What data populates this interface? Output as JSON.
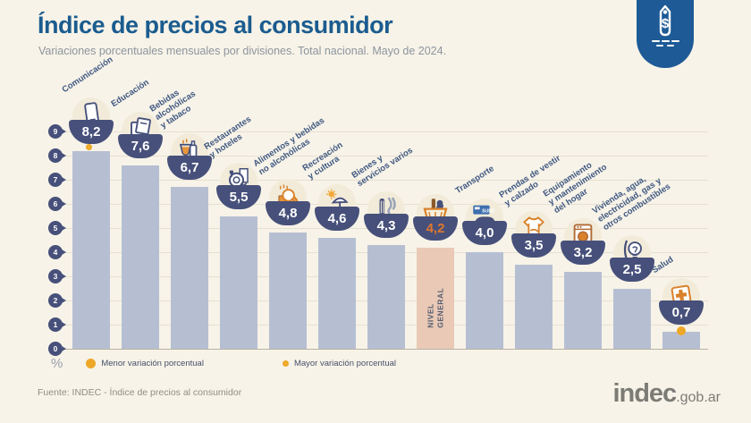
{
  "header": {
    "title": "Índice de precios al consumidor",
    "subtitle": "Variaciones porcentuales mensuales por divisiones. Total nacional. Mayo de 2024."
  },
  "badge": {
    "icon": "price-tag-icon"
  },
  "chart_data": {
    "type": "bar",
    "title": "Índice de precios al consumidor",
    "subtitle": "Variaciones porcentuales mensuales por divisiones. Total nacional. Mayo de 2024.",
    "unit": "%",
    "ylim": [
      0,
      9
    ],
    "yticks": [
      0,
      1,
      2,
      3,
      4,
      5,
      6,
      7,
      8,
      9
    ],
    "grid": true,
    "categories": [
      "Comunicación",
      "Educación",
      "Bebidas alcohólicas y tabaco",
      "Restaurantes y hoteles",
      "Alimentos y bebidas no alcohólicas",
      "Recreación y cultura",
      "Bienes y servicios varios",
      "Nivel general",
      "Transporte",
      "Prendas de vestir y calzado",
      "Equipamiento y mantenimiento del hogar",
      "Vivienda, agua, electricidad, gas y otros combustibles",
      "Salud"
    ],
    "label_lines": [
      "Comunicación",
      "Educación",
      "Bebidas\nalcohólicas\ny tabaco",
      "Restaurantes\ny hoteles",
      "Alimentos y bebidas\nno alcohólicas",
      "Recreación\ny cultura",
      "Bienes y\nservicios varios",
      "",
      "Transporte",
      "Prendas de vestir\ny calzado",
      "Equipamiento\ny mantenimiento\ndel hogar",
      "Vivienda, agua,\nelectricidad, gas y\notros combustibles",
      "Salud"
    ],
    "values": [
      8.2,
      7.6,
      6.7,
      5.5,
      4.8,
      4.6,
      4.3,
      4.2,
      4.0,
      3.5,
      3.2,
      2.5,
      0.7
    ],
    "display_values": [
      "8,2",
      "7,6",
      "6,7",
      "5,5",
      "4,8",
      "4,6",
      "4,3",
      "4,2",
      "4,0",
      "3,5",
      "3,2",
      "2,5",
      "0,7"
    ],
    "icons": [
      "smartphone-icon",
      "books-icon",
      "drinks-icon",
      "restaurant-icon",
      "food-icon",
      "recreation-icon",
      "personal-goods-icon",
      "shopping-basket-icon",
      "transport-icon",
      "clothing-icon",
      "appliance-icon",
      "lightbulb-icon",
      "first-aid-icon"
    ],
    "highlight_index": 7,
    "highlight_label": "NIVEL\nGENERAL",
    "marker_mayor_index": 0,
    "marker_menor_index": 12
  },
  "legend": {
    "percent_symbol": "%",
    "menor_label": "Menor variación porcentual",
    "mayor_label": "Mayor variación porcentual"
  },
  "footer": {
    "source": "Fuente: INDEC - Índice de precios al consumidor",
    "logo_main": "indec",
    "logo_suffix": ".gob.ar"
  },
  "colors": {
    "background": "#f7f3e8",
    "title": "#1b5c8f",
    "bar": "#b6bfd2",
    "bar_highlight": "#eacab6",
    "bowl": "#46507a",
    "value_text": "#ffffff",
    "value_text_highlight": "#e0762e",
    "category_label": "#3e5781",
    "marker_yellow": "#eda827",
    "badge_blue": "#1d5a96"
  }
}
